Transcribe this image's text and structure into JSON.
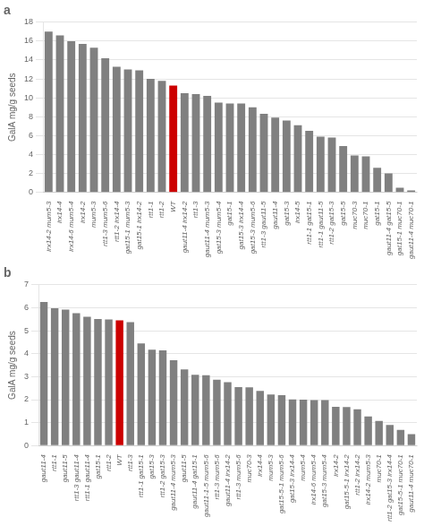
{
  "chart_data": [
    {
      "type": "bar",
      "title": "a",
      "ylabel": "GalA mg/g seeds",
      "categories": [
        "irx14-2 mum5-3",
        "irx14-4",
        "irx14-6 mum5-4",
        "irx14-2",
        "mum5-3",
        "rtt1-3 mum5-6",
        "rtt1-2 irx14-4",
        "gat15-1 mum5-3",
        "gat15-1 irx14-2",
        "rtt1-1",
        "rtt1-2",
        "WT",
        "gaut11-4 irx14-2",
        "rtt1-3",
        "gaut11-4 mum5-3",
        "gat15-3 mum5-4",
        "gat15-1",
        "gat15-3 irx14-4",
        "gat15-3 mum5-6",
        "rtt1-3 gaut11-5",
        "gaut11-4",
        "gat15-3",
        "irx14-5",
        "rtt1-1 gat15-1",
        "rtt1-1 gaut11-5",
        "rtt1-2 gat15-3",
        "gat15-5",
        "muc70-3",
        "muc70-1",
        "gat15-1",
        "gaut11-4 gat15-5",
        "gat15-1 muc70-1",
        "gaut11-4 muc70-1"
      ],
      "values": [
        17.0,
        16.6,
        16.0,
        15.7,
        15.3,
        14.2,
        13.3,
        13.0,
        12.9,
        12.0,
        11.8,
        11.3,
        10.5,
        10.4,
        10.2,
        9.5,
        9.4,
        9.4,
        9.0,
        8.3,
        7.9,
        7.6,
        7.1,
        6.5,
        5.9,
        5.8,
        4.9,
        3.9,
        3.8,
        2.6,
        2.0,
        0.5,
        0.2
      ],
      "colors": [
        "#808080",
        "#808080",
        "#808080",
        "#808080",
        "#808080",
        "#808080",
        "#808080",
        "#808080",
        "#808080",
        "#808080",
        "#808080",
        "#cc0000",
        "#808080",
        "#808080",
        "#808080",
        "#808080",
        "#808080",
        "#808080",
        "#808080",
        "#808080",
        "#808080",
        "#808080",
        "#808080",
        "#808080",
        "#808080",
        "#808080",
        "#808080",
        "#808080",
        "#808080",
        "#808080",
        "#808080",
        "#808080",
        "#808080"
      ],
      "ylim": [
        0,
        18
      ],
      "yticks": [
        0,
        2,
        4,
        6,
        8,
        10,
        12,
        14,
        16,
        18
      ],
      "grid": true
    },
    {
      "type": "bar",
      "title": "b",
      "ylabel": "GalA mg/g seeds",
      "categories": [
        "gaut11-4",
        "rtt1-1",
        "gaut11-5",
        "rtt1-3 gaut11-4",
        "rtt1-1 gaut11-4",
        "gat15-1",
        "rtt1-2",
        "WT",
        "rtt1-3",
        "rtt1-1 gat15-1",
        "gat15-3",
        "rtt1-2 gat15-3",
        "gaut11-4 mum5-3",
        "gaut11-5",
        "gaut11-4 gat15-1",
        "gaut11-1-5 mum5-6",
        "rtt1-3 mum5-6",
        "gaut11-4 irx14-2",
        "rtt1-3 mum5-6",
        "muc70-3",
        "irx14-4",
        "mum5-3",
        "gat15-5-1 mum5-6",
        "gat15-3 irx14-4",
        "mum5-4",
        "irx14-6 mum5-4",
        "gat15-3 mum5-4",
        "irx14-2",
        "gat15-5-1 irx14-2",
        "rtt1-2 irx14-2",
        "irx14-2 mum5-3",
        "muc70-1",
        "rtt1-2 gat15-3 irx14-4",
        "gat15-5-1 muc70-1",
        "gaut11-4 muc70-1"
      ],
      "values": [
        6.25,
        5.98,
        5.92,
        5.76,
        5.61,
        5.51,
        5.49,
        5.45,
        5.37,
        4.45,
        4.17,
        4.15,
        3.72,
        3.32,
        3.08,
        3.06,
        2.87,
        2.76,
        2.55,
        2.54,
        2.38,
        2.22,
        2.2,
        2.01,
        2.0,
        1.98,
        1.98,
        1.69,
        1.68,
        1.58,
        1.27,
        1.07,
        0.9,
        0.68,
        0.5
      ],
      "colors": [
        "#808080",
        "#808080",
        "#808080",
        "#808080",
        "#808080",
        "#808080",
        "#808080",
        "#cc0000",
        "#808080",
        "#808080",
        "#808080",
        "#808080",
        "#808080",
        "#808080",
        "#808080",
        "#808080",
        "#808080",
        "#808080",
        "#808080",
        "#808080",
        "#808080",
        "#808080",
        "#808080",
        "#808080",
        "#808080",
        "#808080",
        "#808080",
        "#808080",
        "#808080",
        "#808080",
        "#808080",
        "#808080",
        "#808080",
        "#808080",
        "#808080"
      ],
      "ylim": [
        0,
        7
      ],
      "yticks": [
        0,
        1,
        2,
        3,
        4,
        5,
        6,
        7
      ],
      "grid": true
    }
  ]
}
